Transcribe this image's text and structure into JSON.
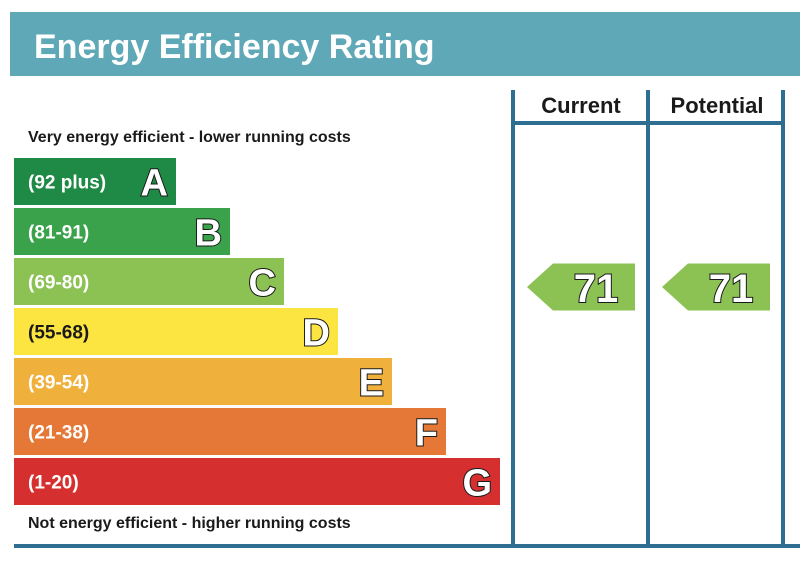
{
  "header": {
    "title": "Energy Efficiency Rating"
  },
  "columns": {
    "current_label": "Current",
    "potential_label": "Potential"
  },
  "notes": {
    "top": "Very energy efficient - lower running costs",
    "bottom": "Not energy efficient - higher running costs"
  },
  "colors": {
    "header_bg": "#5fa8b8",
    "frame": "#2e6f91",
    "bands": [
      "#1f8a46",
      "#3aa24a",
      "#8cc153",
      "#fde541",
      "#efb03c",
      "#e57837",
      "#d5302f"
    ]
  },
  "chart_data": {
    "type": "bar",
    "title": "Energy Efficiency Rating",
    "categories": [
      "A",
      "B",
      "C",
      "D",
      "E",
      "F",
      "G"
    ],
    "ranges": [
      "(92 plus)",
      "(81-91)",
      "(69-80)",
      "(55-68)",
      "(39-54)",
      "(21-38)",
      "(1-20)"
    ],
    "current": {
      "value": 71,
      "band": "C"
    },
    "potential": {
      "value": 71,
      "band": "C"
    }
  }
}
